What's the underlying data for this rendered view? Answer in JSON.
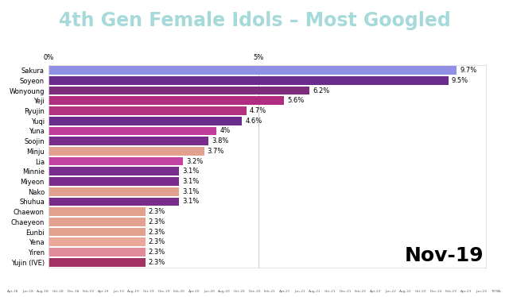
{
  "chart_data": {
    "type": "bar",
    "orientation": "horizontal",
    "title": "4th Gen Female Idols – Most Googled",
    "date_label": "Nov-19",
    "categories": [
      "Sakura",
      "Soyeon",
      "Wonyoung",
      "Yeji",
      "Ryujin",
      "Yuqi",
      "Yuna",
      "Soojin",
      "Minju",
      "Lia",
      "Minnie",
      "Miyeon",
      "Nako",
      "Shuhua",
      "Chaewon",
      "Chaeyeon",
      "Eunbi",
      "Yena",
      "Yiren",
      "Yujin (IVE)"
    ],
    "values": [
      9.7,
      9.5,
      6.2,
      5.6,
      4.7,
      4.6,
      4,
      3.8,
      3.7,
      3.2,
      3.1,
      3.1,
      3.1,
      3.1,
      2.3,
      2.3,
      2.3,
      2.3,
      2.3,
      2.3
    ],
    "value_labels": [
      "9.7%",
      "9.5%",
      "6.2%",
      "5.6%",
      "4.7%",
      "4.6%",
      "4%",
      "3.8%",
      "3.7%",
      "3.2%",
      "3.1%",
      "3.1%",
      "3.1%",
      "3.1%",
      "2.3%",
      "2.3%",
      "2.3%",
      "2.3%",
      "2.3%",
      "2.3%"
    ],
    "colors": [
      "#8f90e6",
      "#6a2c8c",
      "#7e2c7c",
      "#b02c7e",
      "#b4337e",
      "#6a2c8c",
      "#c23c9c",
      "#7a2c8c",
      "#e2a08e",
      "#c242a2",
      "#7a2c8c",
      "#7a2c8c",
      "#e2a08e",
      "#7a2c8c",
      "#e2a08e",
      "#e2a08e",
      "#e2a08e",
      "#eaa898",
      "#e08a9a",
      "#a23262"
    ],
    "xlim": [
      0,
      10.4
    ],
    "xticks": [
      {
        "value": 0,
        "label": "0%"
      },
      {
        "value": 5,
        "label": "5%"
      }
    ],
    "grid": true,
    "data_labels": true,
    "timeline": [
      "Apr-18",
      "Jun-18",
      "Aug-18",
      "Oct-18",
      "Dec-18",
      "Feb-19",
      "Apr-19",
      "Jun-19",
      "Aug-19",
      "Oct-19",
      "Dec-19",
      "Feb-20",
      "Apr-20",
      "Jun-20",
      "Aug-20",
      "Oct-20",
      "Dec-20",
      "Feb-21",
      "Apr-21",
      "Jun-21",
      "Aug-21",
      "Oct-21",
      "Dec-21",
      "Feb-22",
      "Apr-22",
      "Jun-22",
      "Aug-22",
      "Oct-22",
      "Dec-22",
      "Feb-23",
      "Apr-23",
      "Jun-23",
      "TOTAL"
    ]
  }
}
